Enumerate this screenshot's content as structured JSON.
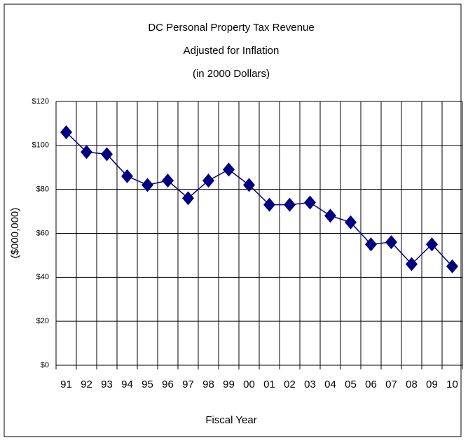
{
  "chart_data": {
    "type": "line",
    "title": "DC Personal Property Tax Revenue",
    "subtitle": [
      "Adjusted for Inflation",
      "(in 2000 Dollars)"
    ],
    "xlabel": "Fiscal Year",
    "ylabel": "($000,000)",
    "categories": [
      "91",
      "92",
      "93",
      "94",
      "95",
      "96",
      "97",
      "98",
      "99",
      "00",
      "01",
      "02",
      "03",
      "04",
      "05",
      "06",
      "07",
      "08",
      "09",
      "10"
    ],
    "series": [
      {
        "name": "Revenue",
        "color": "#000080",
        "values": [
          106,
          97,
          96,
          86,
          82,
          84,
          76,
          84,
          89,
          82,
          73,
          73,
          74,
          68,
          65,
          55,
          56,
          46,
          55,
          45
        ]
      }
    ],
    "ylim": [
      0,
      120
    ],
    "yticks": [
      {
        "value": 0,
        "label": "$0"
      },
      {
        "value": 20,
        "label": "$20"
      },
      {
        "value": 40,
        "label": "$40"
      },
      {
        "value": 60,
        "label": "$60"
      },
      {
        "value": 80,
        "label": "$80"
      },
      {
        "value": 100,
        "label": "$100"
      },
      {
        "value": 120,
        "label": "$120"
      }
    ],
    "grid": true
  }
}
